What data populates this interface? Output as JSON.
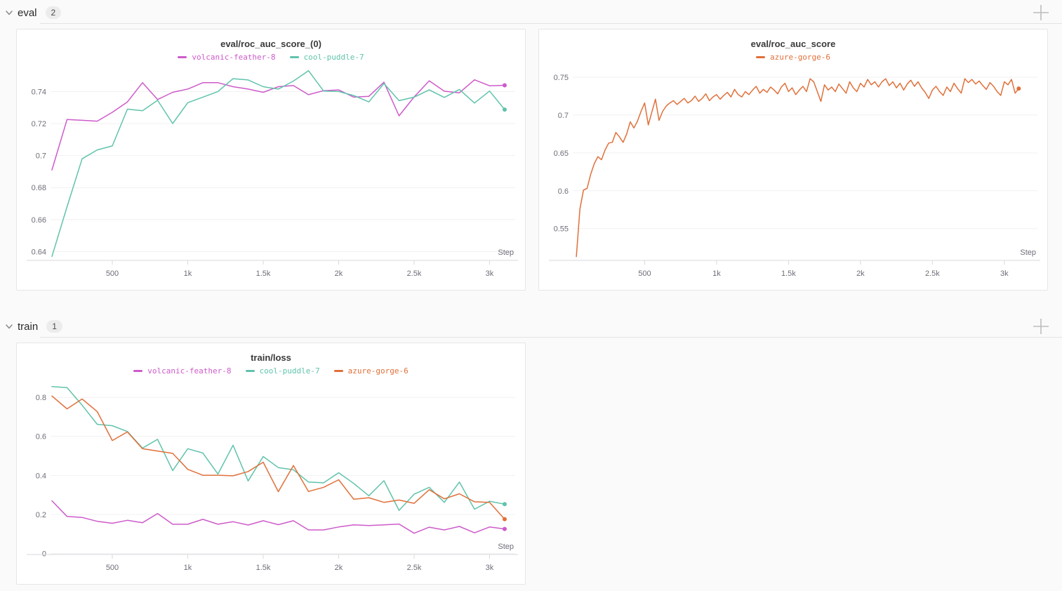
{
  "page": {
    "background": "#fafafa"
  },
  "icons": {
    "section_collapse": "chevron-down-icon",
    "add_panel": "plus-icon"
  },
  "colors": {
    "run_volcanic_feather_8": "#cd5bca",
    "run_cool_puddle_7": "#60c3ab",
    "run_azure_gorge_6": "#e0703a",
    "panel_background": "#ffffff",
    "grid": "#f1f1f3"
  },
  "sections": [
    {
      "title": "eval",
      "count": "2"
    },
    {
      "title": "train",
      "count": "1"
    }
  ],
  "chart_data": [
    {
      "type": "line",
      "title": "eval/roc_auc_score_(0)",
      "xlabel": "Step",
      "xlim": [
        100,
        3170
      ],
      "ylim": [
        0.6345,
        0.752
      ],
      "grid": "horizontal",
      "legend_position": "top",
      "xticks": [
        {
          "v": 500,
          "label": "500"
        },
        {
          "v": 1000,
          "label": "1k"
        },
        {
          "v": 1500,
          "label": "1.5k"
        },
        {
          "v": 2000,
          "label": "2k"
        },
        {
          "v": 2500,
          "label": "2.5k"
        },
        {
          "v": 3000,
          "label": "3k"
        }
      ],
      "yticks": [
        {
          "v": 0.64,
          "label": "0.64"
        },
        {
          "v": 0.66,
          "label": "0.66"
        },
        {
          "v": 0.68,
          "label": "0.68"
        },
        {
          "v": 0.7,
          "label": "0.7"
        },
        {
          "v": 0.72,
          "label": "0.72"
        },
        {
          "v": 0.74,
          "label": "0.74"
        }
      ],
      "series": [
        {
          "name": "volcanic-feather-8",
          "color": "#cd5bca",
          "start": 100,
          "interval": 100,
          "values": [
            0.691,
            0.7225,
            0.722,
            0.7215,
            0.727,
            0.7335,
            0.7455,
            0.735,
            0.7395,
            0.7415,
            0.7455,
            0.7455,
            0.743,
            0.7415,
            0.7395,
            0.743,
            0.7437,
            0.738,
            0.7405,
            0.741,
            0.7365,
            0.737,
            0.7458,
            0.7248,
            0.7366,
            0.7467,
            0.7402,
            0.7392,
            0.7473,
            0.7436,
            0.7439
          ]
        },
        {
          "name": "cool-puddle-7",
          "color": "#60c3ab",
          "start": 100,
          "interval": 100,
          "values": [
            0.637,
            0.668,
            0.698,
            0.7035,
            0.706,
            0.729,
            0.728,
            0.7345,
            0.72,
            0.733,
            0.7365,
            0.74,
            0.748,
            0.7472,
            0.743,
            0.7415,
            0.7465,
            0.753,
            0.7403,
            0.74,
            0.7375,
            0.7335,
            0.745,
            0.7343,
            0.7365,
            0.741,
            0.7363,
            0.7413,
            0.7328,
            0.7403,
            0.7287
          ]
        }
      ]
    },
    {
      "type": "line",
      "title": "eval/roc_auc_score",
      "xlabel": "Step",
      "xlim": [
        10,
        3230
      ],
      "ylim": [
        0.508,
        0.7565
      ],
      "grid": "horizontal",
      "legend_position": "top",
      "xticks": [
        {
          "v": 500,
          "label": "500"
        },
        {
          "v": 1000,
          "label": "1k"
        },
        {
          "v": 1500,
          "label": "1.5k"
        },
        {
          "v": 2000,
          "label": "2k"
        },
        {
          "v": 2500,
          "label": "2.5k"
        },
        {
          "v": 3000,
          "label": "3k"
        }
      ],
      "yticks": [
        {
          "v": 0.55,
          "label": "0.55"
        },
        {
          "v": 0.6,
          "label": "0.6"
        },
        {
          "v": 0.65,
          "label": "0.65"
        },
        {
          "v": 0.7,
          "label": "0.7"
        },
        {
          "v": 0.75,
          "label": "0.75"
        }
      ],
      "series": [
        {
          "name": "azure-gorge-6",
          "color": "#e0703a",
          "start": 25,
          "interval": 25,
          "values": [
            0.513,
            0.576,
            0.601,
            0.603,
            0.622,
            0.636,
            0.645,
            0.641,
            0.654,
            0.663,
            0.664,
            0.677,
            0.671,
            0.664,
            0.675,
            0.691,
            0.683,
            0.692,
            0.705,
            0.716,
            0.687,
            0.704,
            0.721,
            0.693,
            0.705,
            0.712,
            0.716,
            0.719,
            0.714,
            0.718,
            0.722,
            0.716,
            0.719,
            0.725,
            0.718,
            0.722,
            0.728,
            0.719,
            0.724,
            0.727,
            0.721,
            0.726,
            0.73,
            0.724,
            0.734,
            0.727,
            0.724,
            0.731,
            0.727,
            0.733,
            0.738,
            0.729,
            0.734,
            0.73,
            0.737,
            0.733,
            0.728,
            0.737,
            0.742,
            0.731,
            0.736,
            0.727,
            0.733,
            0.738,
            0.731,
            0.748,
            0.744,
            0.731,
            0.718,
            0.74,
            0.733,
            0.737,
            0.731,
            0.741,
            0.735,
            0.729,
            0.744,
            0.736,
            0.731,
            0.742,
            0.737,
            0.747,
            0.74,
            0.744,
            0.737,
            0.744,
            0.748,
            0.739,
            0.744,
            0.736,
            0.742,
            0.733,
            0.741,
            0.746,
            0.738,
            0.744,
            0.736,
            0.73,
            0.722,
            0.733,
            0.738,
            0.731,
            0.726,
            0.737,
            0.731,
            0.742,
            0.735,
            0.729,
            0.748,
            0.743,
            0.747,
            0.741,
            0.745,
            0.739,
            0.734,
            0.743,
            0.738,
            0.731,
            0.726,
            0.744,
            0.74,
            0.747,
            0.729,
            0.735
          ]
        }
      ]
    },
    {
      "type": "line",
      "title": "train/loss",
      "xlabel": "Step",
      "xlim": [
        100,
        3170
      ],
      "ylim": [
        -0.005,
        0.858
      ],
      "grid": "horizontal",
      "legend_position": "top",
      "xticks": [
        {
          "v": 500,
          "label": "500"
        },
        {
          "v": 1000,
          "label": "1k"
        },
        {
          "v": 1500,
          "label": "1.5k"
        },
        {
          "v": 2000,
          "label": "2k"
        },
        {
          "v": 2500,
          "label": "2.5k"
        },
        {
          "v": 3000,
          "label": "3k"
        }
      ],
      "yticks": [
        {
          "v": 0,
          "label": "0"
        },
        {
          "v": 0.2,
          "label": "0.2"
        },
        {
          "v": 0.4,
          "label": "0.4"
        },
        {
          "v": 0.6,
          "label": "0.6"
        },
        {
          "v": 0.8,
          "label": "0.8"
        }
      ],
      "series": [
        {
          "name": "volcanic-feather-8",
          "color": "#cd5bca",
          "start": 100,
          "interval": 100,
          "values": [
            0.27,
            0.19,
            0.185,
            0.165,
            0.155,
            0.17,
            0.158,
            0.205,
            0.15,
            0.15,
            0.175,
            0.15,
            0.163,
            0.146,
            0.168,
            0.148,
            0.168,
            0.121,
            0.121,
            0.136,
            0.147,
            0.143,
            0.147,
            0.151,
            0.104,
            0.135,
            0.121,
            0.139,
            0.106,
            0.136,
            0.126
          ]
        },
        {
          "name": "cool-puddle-7",
          "color": "#60c3ab",
          "start": 100,
          "interval": 100,
          "values": [
            0.855,
            0.85,
            0.76,
            0.662,
            0.655,
            0.625,
            0.54,
            0.585,
            0.425,
            0.537,
            0.515,
            0.407,
            0.555,
            0.372,
            0.497,
            0.44,
            0.429,
            0.366,
            0.362,
            0.414,
            0.359,
            0.296,
            0.373,
            0.221,
            0.304,
            0.339,
            0.262,
            0.366,
            0.227,
            0.268,
            0.253
          ]
        },
        {
          "name": "azure-gorge-6",
          "color": "#e0703a",
          "start": 100,
          "interval": 100,
          "values": [
            0.807,
            0.741,
            0.792,
            0.727,
            0.579,
            0.623,
            0.537,
            0.525,
            0.513,
            0.431,
            0.401,
            0.401,
            0.398,
            0.42,
            0.468,
            0.317,
            0.451,
            0.318,
            0.339,
            0.378,
            0.278,
            0.286,
            0.262,
            0.274,
            0.257,
            0.327,
            0.28,
            0.306,
            0.265,
            0.262,
            0.176
          ]
        }
      ]
    }
  ]
}
